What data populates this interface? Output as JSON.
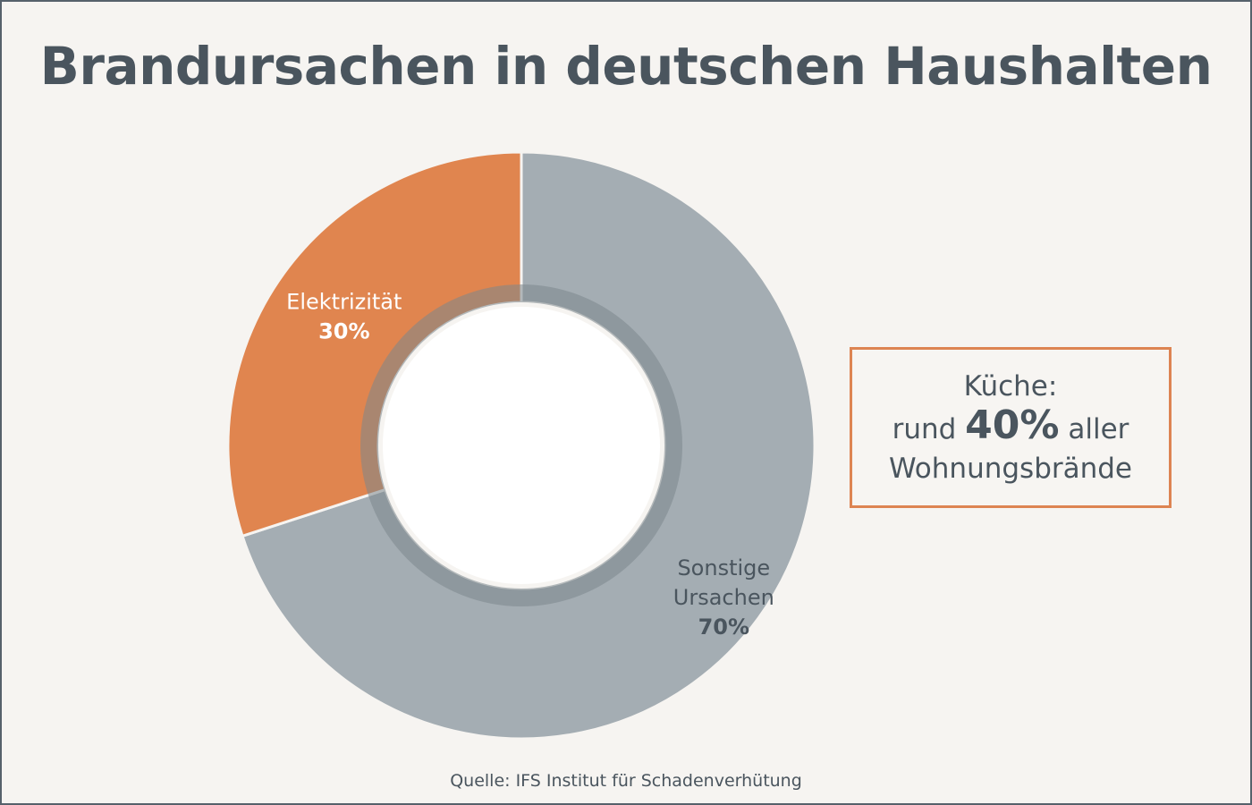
{
  "title": "Brandursachen in deutschen Haushalten",
  "chart_data": {
    "type": "pie",
    "categories": [
      "Sonstige Ursachen",
      "Elektrizität"
    ],
    "values": [
      70,
      30
    ],
    "labels": [
      {
        "lines": [
          "Sonstige",
          "Ursachen"
        ],
        "value_text": "70%"
      },
      {
        "lines": [
          "Elektrizität"
        ],
        "value_text": "30%"
      }
    ],
    "colors": [
      "#a4adb3",
      "#e0854f"
    ],
    "donut": true
  },
  "callout": {
    "line1": "Küche:",
    "prefix": "rund",
    "highlight": "40%",
    "suffix": "aller",
    "line3": "Wohnungsbrände",
    "border_color": "#dd8452"
  },
  "source": "Quelle: IFS Institut für Schadenverhütung"
}
